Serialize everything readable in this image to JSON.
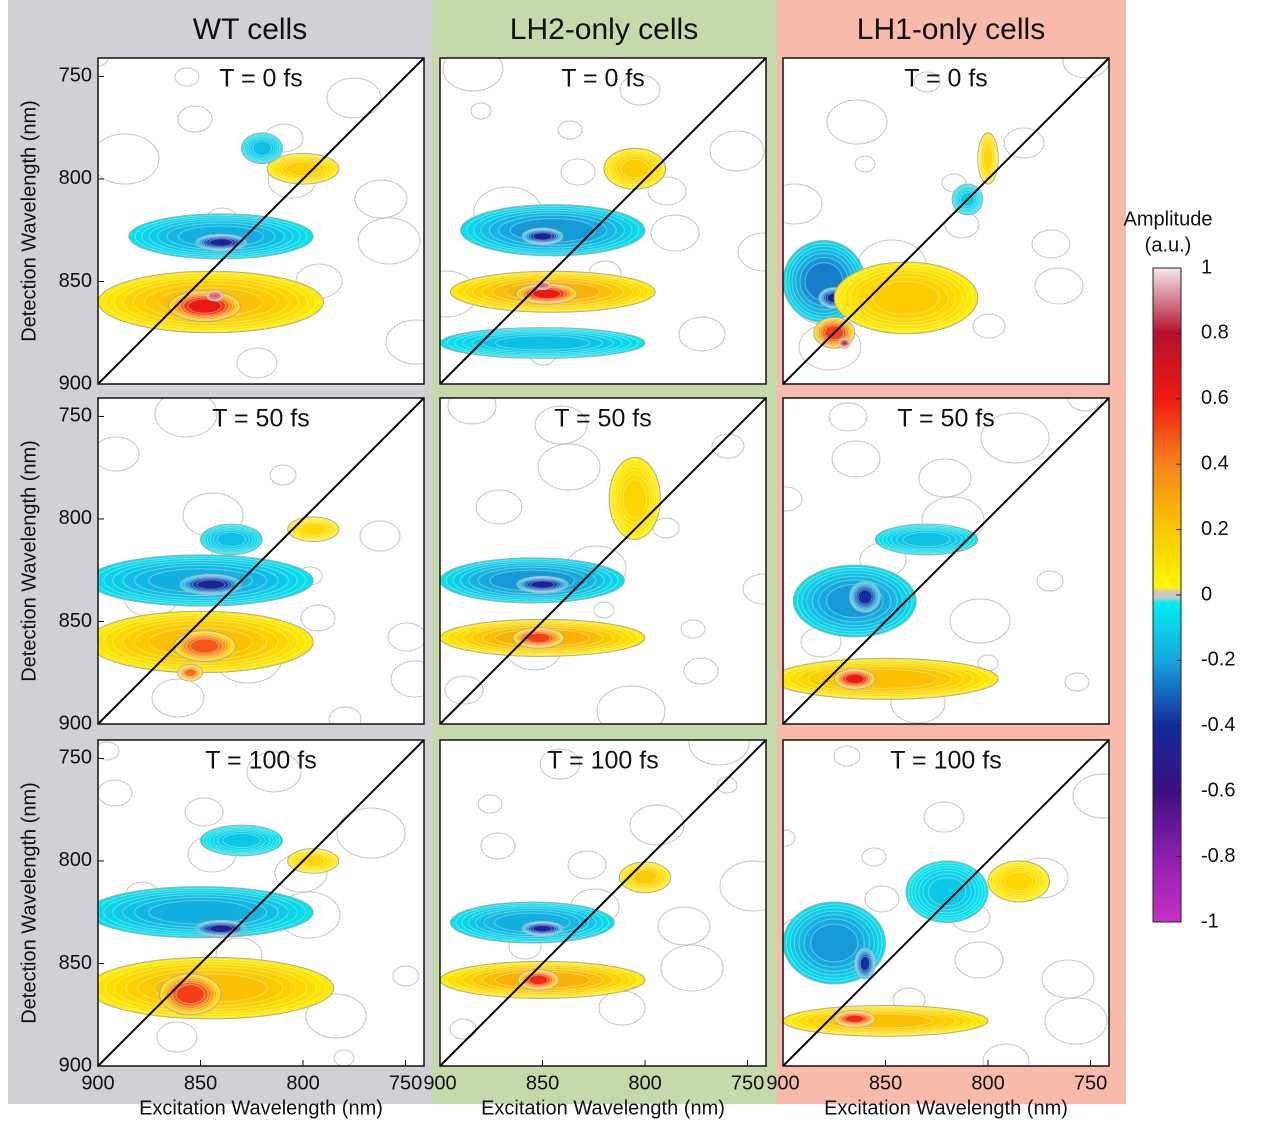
{
  "columns": [
    "WT cells",
    "LH2-only cells",
    "LH1-only cells"
  ],
  "colorbar": {
    "label": [
      "Amplitude",
      "(a.u.)"
    ],
    "ticks": [
      1,
      0.8,
      0.6,
      0.4,
      0.2,
      0,
      -0.2,
      -0.4,
      -0.6,
      -0.8,
      -1
    ],
    "colors": [
      "#f4e8ee",
      "#b5102c",
      "#ef1a10",
      "#f7821a",
      "#fbc700",
      "#c8c8c8",
      "#16a6de",
      "#122a9a",
      "#3a0f7f",
      "#8e1fb0",
      "#c830c8"
    ],
    "zero_colors": {
      "positive": "#fff500",
      "negative": "#00eef0"
    }
  },
  "chart_data": [
    {
      "type": "contour",
      "title": "T = 0 fs",
      "xlim": [
        900,
        741
      ],
      "ylim": [
        900,
        741
      ],
      "yticks": [
        750,
        800,
        850,
        900
      ],
      "y_label": "Detection Wavelength (nm)",
      "peaks": [
        {
          "x": 840,
          "y": 828,
          "amplitude": -0.2,
          "width": 90,
          "height": 22
        },
        {
          "x": 840,
          "y": 831,
          "amplitude": -0.5,
          "width": 25,
          "height": 8
        },
        {
          "x": 845,
          "y": 860,
          "amplitude": 0.25,
          "width": 110,
          "height": 30
        },
        {
          "x": 848,
          "y": 862,
          "amplitude": 0.7,
          "width": 35,
          "height": 15
        },
        {
          "x": 843,
          "y": 857,
          "amplitude": 1,
          "width": 8,
          "height": 5
        },
        {
          "x": 800,
          "y": 795,
          "amplitude": 0.2,
          "width": 35,
          "height": 15
        },
        {
          "x": 820,
          "y": 785,
          "amplitude": -0.15,
          "width": 20,
          "height": 15
        }
      ]
    },
    {
      "type": "contour",
      "title": "T = 0 fs",
      "xlim": [
        900,
        741
      ],
      "ylim": [
        900,
        741
      ],
      "peaks": [
        {
          "x": 845,
          "y": 825,
          "amplitude": -0.25,
          "width": 90,
          "height": 25
        },
        {
          "x": 850,
          "y": 828,
          "amplitude": -0.5,
          "width": 20,
          "height": 8
        },
        {
          "x": 845,
          "y": 855,
          "amplitude": 0.3,
          "width": 100,
          "height": 20
        },
        {
          "x": 848,
          "y": 856,
          "amplitude": 0.7,
          "width": 30,
          "height": 10
        },
        {
          "x": 850,
          "y": 852,
          "amplitude": 1,
          "width": 8,
          "height": 4
        },
        {
          "x": 805,
          "y": 795,
          "amplitude": 0.2,
          "width": 30,
          "height": 20
        },
        {
          "x": 850,
          "y": 880,
          "amplitude": -0.15,
          "width": 100,
          "height": 15
        }
      ]
    },
    {
      "type": "contour",
      "title": "T = 0 fs",
      "xlim": [
        900,
        741
      ],
      "ylim": [
        900,
        741
      ],
      "peaks": [
        {
          "x": 880,
          "y": 850,
          "amplitude": -0.3,
          "width": 40,
          "height": 40
        },
        {
          "x": 875,
          "y": 858,
          "amplitude": -0.5,
          "width": 15,
          "height": 10
        },
        {
          "x": 840,
          "y": 858,
          "amplitude": 0.2,
          "width": 70,
          "height": 35
        },
        {
          "x": 875,
          "y": 875,
          "amplitude": 0.6,
          "width": 20,
          "height": 15
        },
        {
          "x": 870,
          "y": 880,
          "amplitude": 0.95,
          "width": 6,
          "height": 5
        },
        {
          "x": 800,
          "y": 790,
          "amplitude": 0.15,
          "width": 10,
          "height": 25
        },
        {
          "x": 810,
          "y": 810,
          "amplitude": -0.12,
          "width": 15,
          "height": 15
        }
      ]
    },
    {
      "type": "contour",
      "title": "T = 50 fs",
      "xlim": [
        900,
        741
      ],
      "ylim": [
        900,
        741
      ],
      "yticks": [
        750,
        800,
        850,
        900
      ],
      "y_label": "Detection Wavelength (nm)",
      "peaks": [
        {
          "x": 850,
          "y": 830,
          "amplitude": -0.2,
          "width": 110,
          "height": 25
        },
        {
          "x": 845,
          "y": 832,
          "amplitude": -0.5,
          "width": 30,
          "height": 10
        },
        {
          "x": 850,
          "y": 860,
          "amplitude": 0.25,
          "width": 110,
          "height": 30
        },
        {
          "x": 848,
          "y": 862,
          "amplitude": 0.55,
          "width": 30,
          "height": 15
        },
        {
          "x": 855,
          "y": 875,
          "amplitude": 0.5,
          "width": 12,
          "height": 8
        },
        {
          "x": 795,
          "y": 805,
          "amplitude": 0.15,
          "width": 25,
          "height": 12
        },
        {
          "x": 835,
          "y": 810,
          "amplitude": -0.15,
          "width": 30,
          "height": 15
        }
      ]
    },
    {
      "type": "contour",
      "title": "T = 50 fs",
      "xlim": [
        900,
        741
      ],
      "ylim": [
        900,
        741
      ],
      "peaks": [
        {
          "x": 855,
          "y": 830,
          "amplitude": -0.25,
          "width": 90,
          "height": 22
        },
        {
          "x": 850,
          "y": 832,
          "amplitude": -0.5,
          "width": 25,
          "height": 8
        },
        {
          "x": 850,
          "y": 858,
          "amplitude": 0.3,
          "width": 100,
          "height": 18
        },
        {
          "x": 852,
          "y": 858,
          "amplitude": 0.6,
          "width": 25,
          "height": 10
        },
        {
          "x": 805,
          "y": 790,
          "amplitude": 0.15,
          "width": 25,
          "height": 40
        }
      ]
    },
    {
      "type": "contour",
      "title": "T = 50 fs",
      "xlim": [
        900,
        741
      ],
      "ylim": [
        900,
        741
      ],
      "peaks": [
        {
          "x": 865,
          "y": 840,
          "amplitude": -0.25,
          "width": 60,
          "height": 35
        },
        {
          "x": 860,
          "y": 838,
          "amplitude": -0.45,
          "width": 15,
          "height": 15
        },
        {
          "x": 850,
          "y": 878,
          "amplitude": 0.25,
          "width": 110,
          "height": 20
        },
        {
          "x": 865,
          "y": 878,
          "amplitude": 0.7,
          "width": 20,
          "height": 10
        },
        {
          "x": 830,
          "y": 810,
          "amplitude": -0.15,
          "width": 50,
          "height": 15
        }
      ]
    },
    {
      "type": "contour",
      "title": "T = 100 fs",
      "xlim": [
        900,
        741
      ],
      "ylim": [
        900,
        741
      ],
      "xticks": [
        900,
        850,
        800,
        750
      ],
      "yticks": [
        750,
        800,
        850,
        900
      ],
      "x_label": "Excitation Wavelength (nm)",
      "y_label": "Detection Wavelength (nm)",
      "peaks": [
        {
          "x": 850,
          "y": 825,
          "amplitude": -0.2,
          "width": 110,
          "height": 25
        },
        {
          "x": 840,
          "y": 833,
          "amplitude": -0.5,
          "width": 25,
          "height": 8
        },
        {
          "x": 845,
          "y": 862,
          "amplitude": 0.25,
          "width": 120,
          "height": 30
        },
        {
          "x": 855,
          "y": 865,
          "amplitude": 0.6,
          "width": 30,
          "height": 20
        },
        {
          "x": 795,
          "y": 800,
          "amplitude": 0.15,
          "width": 25,
          "height": 12
        },
        {
          "x": 830,
          "y": 790,
          "amplitude": -0.12,
          "width": 40,
          "height": 15
        }
      ]
    },
    {
      "type": "contour",
      "title": "T = 100 fs",
      "xlim": [
        900,
        741
      ],
      "ylim": [
        900,
        741
      ],
      "xticks": [
        900,
        850,
        800,
        750
      ],
      "x_label": "Excitation Wavelength (nm)",
      "peaks": [
        {
          "x": 855,
          "y": 830,
          "amplitude": -0.2,
          "width": 80,
          "height": 20
        },
        {
          "x": 850,
          "y": 833,
          "amplitude": -0.5,
          "width": 20,
          "height": 7
        },
        {
          "x": 850,
          "y": 858,
          "amplitude": 0.3,
          "width": 100,
          "height": 18
        },
        {
          "x": 852,
          "y": 858,
          "amplitude": 0.65,
          "width": 20,
          "height": 10
        },
        {
          "x": 800,
          "y": 808,
          "amplitude": 0.2,
          "width": 25,
          "height": 15
        }
      ]
    },
    {
      "type": "contour",
      "title": "T = 100 fs",
      "xlim": [
        900,
        741
      ],
      "ylim": [
        900,
        741
      ],
      "xticks": [
        900,
        850,
        800,
        750
      ],
      "x_label": "Excitation Wavelength (nm)",
      "peaks": [
        {
          "x": 875,
          "y": 840,
          "amplitude": -0.25,
          "width": 50,
          "height": 40
        },
        {
          "x": 860,
          "y": 850,
          "amplitude": -0.45,
          "width": 10,
          "height": 15
        },
        {
          "x": 850,
          "y": 878,
          "amplitude": 0.25,
          "width": 100,
          "height": 15
        },
        {
          "x": 865,
          "y": 877,
          "amplitude": 0.65,
          "width": 20,
          "height": 8
        },
        {
          "x": 820,
          "y": 815,
          "amplitude": -0.12,
          "width": 40,
          "height": 30
        },
        {
          "x": 785,
          "y": 810,
          "amplitude": 0.15,
          "width": 30,
          "height": 20
        }
      ]
    }
  ]
}
